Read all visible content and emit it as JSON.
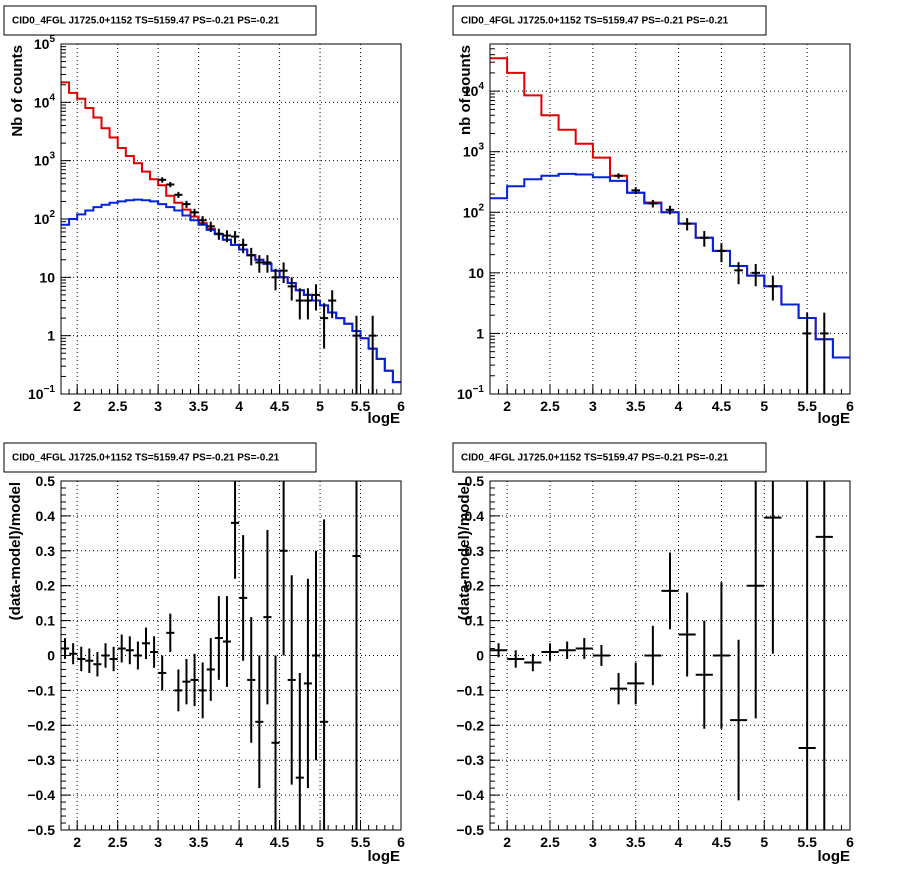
{
  "colors": {
    "data": "#000000",
    "total_model": "#e00000",
    "source_model": "#0022dd",
    "grid": "#000000"
  },
  "chart_data": [
    {
      "type": "histogram",
      "title": "CID0_4FGL J1725.0+1152 TS=5159.47 PS=-0.21 PS=-0.21",
      "xlabel": "logE",
      "ylabel": "Nb of counts",
      "xlim": [
        1.8,
        6.0
      ],
      "ylim": [
        0.1,
        100000
      ],
      "yscale": "log",
      "grid": true,
      "xticks": [
        "2",
        "2.5",
        "3",
        "3.5",
        "4",
        "4.5",
        "5",
        "5.5",
        "6"
      ],
      "yticks": [
        {
          "v": 0.1,
          "base": "10",
          "exp": "−1"
        },
        {
          "v": 1,
          "base": "1",
          "exp": ""
        },
        {
          "v": 10,
          "base": "10",
          "exp": ""
        },
        {
          "v": 100,
          "base": "10",
          "exp": "2"
        },
        {
          "v": 1000,
          "base": "10",
          "exp": "3"
        },
        {
          "v": 10000,
          "base": "10",
          "exp": "4"
        },
        {
          "v": 100000,
          "base": "10",
          "exp": "5"
        }
      ],
      "bin_edges": [
        1.8,
        1.9,
        2.0,
        2.1,
        2.2,
        2.3,
        2.4,
        2.5,
        2.6,
        2.7,
        2.8,
        2.9,
        3.0,
        3.1,
        3.2,
        3.3,
        3.4,
        3.5,
        3.6,
        3.7,
        3.8,
        3.9,
        4.0,
        4.1,
        4.2,
        4.3,
        4.4,
        4.5,
        4.6,
        4.7,
        4.8,
        4.9,
        5.0,
        5.1,
        5.2,
        5.3,
        5.4,
        5.5,
        5.6,
        5.7,
        5.8,
        5.9,
        6.0
      ],
      "series": [
        {
          "name": "",
          "role": "total_model",
          "style": "step",
          "values": [
            22000,
            14500,
            11500,
            8000,
            5500,
            3600,
            2500,
            1650,
            1200,
            900,
            650,
            480,
            380,
            250,
            190,
            145,
            110,
            85,
            68,
            55,
            44,
            36,
            30,
            24,
            20,
            17,
            13,
            10,
            8,
            6,
            5,
            4,
            3.3,
            2.5,
            2,
            1.6,
            1.2,
            0.9,
            0.6,
            0.4,
            0.25,
            0.16
          ]
        },
        {
          "name": "",
          "role": "source_model",
          "style": "step",
          "values": [
            80,
            100,
            120,
            140,
            160,
            175,
            190,
            200,
            210,
            215,
            210,
            200,
            180,
            160,
            140,
            115,
            95,
            80,
            65,
            55,
            44,
            36,
            30,
            24,
            20,
            17,
            13,
            10,
            8,
            6,
            5,
            4,
            3.3,
            2.5,
            2,
            1.6,
            1.2,
            0.9,
            0.6,
            0.4,
            0.25,
            0.16
          ]
        },
        {
          "name": "",
          "role": "data",
          "style": "errorbar",
          "points": [
            {
              "x": 3.05,
              "y": 470,
              "lo": 420,
              "hi": 520
            },
            {
              "x": 3.15,
              "y": 390,
              "lo": 350,
              "hi": 430
            },
            {
              "x": 3.25,
              "y": 260,
              "lo": 230,
              "hi": 292
            },
            {
              "x": 3.35,
              "y": 180,
              "lo": 155,
              "hi": 205
            },
            {
              "x": 3.45,
              "y": 130,
              "lo": 110,
              "hi": 150
            },
            {
              "x": 3.55,
              "y": 95,
              "lo": 78,
              "hi": 112
            },
            {
              "x": 3.65,
              "y": 75,
              "lo": 60,
              "hi": 90
            },
            {
              "x": 3.75,
              "y": 56,
              "lo": 44,
              "hi": 68
            },
            {
              "x": 3.85,
              "y": 52,
              "lo": 40,
              "hi": 64
            },
            {
              "x": 3.95,
              "y": 50,
              "lo": 38,
              "hi": 62
            },
            {
              "x": 4.05,
              "y": 36,
              "lo": 26,
              "hi": 46
            },
            {
              "x": 4.15,
              "y": 24,
              "lo": 16,
              "hi": 32
            },
            {
              "x": 4.25,
              "y": 18,
              "lo": 12,
              "hi": 24
            },
            {
              "x": 4.35,
              "y": 18,
              "lo": 12,
              "hi": 24
            },
            {
              "x": 4.45,
              "y": 10,
              "lo": 6,
              "hi": 14
            },
            {
              "x": 4.55,
              "y": 13,
              "lo": 8,
              "hi": 18
            },
            {
              "x": 4.65,
              "y": 7,
              "lo": 4,
              "hi": 10
            },
            {
              "x": 4.75,
              "y": 4,
              "lo": 1.9,
              "hi": 6.5
            },
            {
              "x": 4.85,
              "y": 4,
              "lo": 1.9,
              "hi": 6.5
            },
            {
              "x": 4.95,
              "y": 5,
              "lo": 2.7,
              "hi": 7.6
            },
            {
              "x": 5.05,
              "y": 2,
              "lo": 0.6,
              "hi": 3.6
            },
            {
              "x": 5.15,
              "y": 4,
              "lo": 2,
              "hi": 6
            },
            {
              "x": 5.45,
              "y": 1,
              "lo": 0.1,
              "hi": 2.2
            },
            {
              "x": 5.65,
              "y": 1,
              "lo": 0.1,
              "hi": 2.2
            }
          ]
        }
      ]
    },
    {
      "type": "histogram",
      "title": "CID0_4FGL J1725.0+1152 TS=5159.47 PS=-0.21 PS=-0.21",
      "xlabel": "logE",
      "ylabel": "nb of counts",
      "xlim": [
        1.8,
        6.0
      ],
      "ylim": [
        0.1,
        60000
      ],
      "yscale": "log",
      "grid": true,
      "xticks": [
        "2",
        "2.5",
        "3",
        "3.5",
        "4",
        "4.5",
        "5",
        "5.5",
        "6"
      ],
      "yticks": [
        {
          "v": 0.1,
          "base": "10",
          "exp": "−1"
        },
        {
          "v": 1,
          "base": "1",
          "exp": ""
        },
        {
          "v": 10,
          "base": "10",
          "exp": ""
        },
        {
          "v": 100,
          "base": "10",
          "exp": "2"
        },
        {
          "v": 1000,
          "base": "10",
          "exp": "3"
        },
        {
          "v": 10000,
          "base": "10",
          "exp": "4"
        }
      ],
      "bin_edges": [
        1.8,
        2.0,
        2.2,
        2.4,
        2.6,
        2.8,
        3.0,
        3.2,
        3.4,
        3.6,
        3.8,
        4.0,
        4.2,
        4.4,
        4.6,
        4.8,
        5.0,
        5.2,
        5.4,
        5.6,
        5.8,
        6.0
      ],
      "series": [
        {
          "name": "",
          "role": "total_model",
          "style": "step",
          "values": [
            35000,
            20000,
            8500,
            4000,
            2300,
            1350,
            800,
            400,
            210,
            145,
            100,
            65,
            38,
            23,
            13,
            9,
            6,
            3,
            1.8,
            0.8,
            0.4
          ]
        },
        {
          "name": "",
          "role": "source_model",
          "style": "step",
          "values": [
            170,
            270,
            350,
            400,
            430,
            420,
            380,
            330,
            210,
            140,
            100,
            65,
            38,
            23,
            13,
            9,
            6,
            3,
            1.8,
            0.8,
            0.4
          ]
        },
        {
          "name": "",
          "role": "data",
          "style": "errorbar",
          "points": [
            {
              "x": 3.3,
              "y": 400,
              "lo": 360,
              "hi": 440
            },
            {
              "x": 3.5,
              "y": 230,
              "lo": 200,
              "hi": 260
            },
            {
              "x": 3.7,
              "y": 140,
              "lo": 120,
              "hi": 160
            },
            {
              "x": 3.9,
              "y": 110,
              "lo": 92,
              "hi": 128
            },
            {
              "x": 4.1,
              "y": 65,
              "lo": 50,
              "hi": 80
            },
            {
              "x": 4.3,
              "y": 38,
              "lo": 27,
              "hi": 49
            },
            {
              "x": 4.5,
              "y": 23,
              "lo": 15,
              "hi": 31
            },
            {
              "x": 4.7,
              "y": 11,
              "lo": 6.5,
              "hi": 15
            },
            {
              "x": 4.9,
              "y": 10,
              "lo": 6,
              "hi": 14
            },
            {
              "x": 5.1,
              "y": 6,
              "lo": 3.5,
              "hi": 9
            },
            {
              "x": 5.5,
              "y": 1,
              "lo": 0.1,
              "hi": 2.2
            },
            {
              "x": 5.7,
              "y": 1,
              "lo": 0.1,
              "hi": 2.2
            }
          ]
        }
      ]
    },
    {
      "type": "scatter",
      "title": "CID0_4FGL J1725.0+1152 TS=5159.47 PS=-0.21 PS=-0.21",
      "xlabel": "logE",
      "ylabel": "(data-model)/model",
      "xlim": [
        1.8,
        6.0
      ],
      "ylim": [
        -0.5,
        0.5
      ],
      "grid": true,
      "xticks": [
        "2",
        "2.5",
        "3",
        "3.5",
        "4",
        "4.5",
        "5",
        "5.5",
        "6"
      ],
      "yticks": [
        "−0.5",
        "−0.4",
        "−0.3",
        "−0.2",
        "−0.1",
        "0",
        "0.1",
        "0.2",
        "0.3",
        "0.4",
        "0.5"
      ],
      "series": [
        {
          "name": "",
          "role": "data",
          "style": "errorbar",
          "xerr": 0.05,
          "points": [
            {
              "x": 1.85,
              "y": 0.02,
              "e": 0.03
            },
            {
              "x": 1.95,
              "y": 0.005,
              "e": 0.03
            },
            {
              "x": 2.05,
              "y": -0.01,
              "e": 0.035
            },
            {
              "x": 2.15,
              "y": -0.015,
              "e": 0.035
            },
            {
              "x": 2.25,
              "y": -0.025,
              "e": 0.035
            },
            {
              "x": 2.35,
              "y": 0.0,
              "e": 0.035
            },
            {
              "x": 2.45,
              "y": -0.01,
              "e": 0.035
            },
            {
              "x": 2.55,
              "y": 0.02,
              "e": 0.04
            },
            {
              "x": 2.65,
              "y": 0.015,
              "e": 0.04
            },
            {
              "x": 2.75,
              "y": 0.0,
              "e": 0.04
            },
            {
              "x": 2.85,
              "y": 0.035,
              "e": 0.045
            },
            {
              "x": 2.95,
              "y": 0.01,
              "e": 0.045
            },
            {
              "x": 3.05,
              "y": -0.05,
              "e": 0.05
            },
            {
              "x": 3.15,
              "y": 0.065,
              "e": 0.055
            },
            {
              "x": 3.25,
              "y": -0.1,
              "e": 0.06
            },
            {
              "x": 3.35,
              "y": -0.075,
              "e": 0.065
            },
            {
              "x": 3.45,
              "y": -0.07,
              "e": 0.075
            },
            {
              "x": 3.55,
              "y": -0.1,
              "e": 0.08
            },
            {
              "x": 3.65,
              "y": -0.04,
              "e": 0.09
            },
            {
              "x": 3.75,
              "y": 0.05,
              "e": 0.12
            },
            {
              "x": 3.85,
              "y": 0.04,
              "e": 0.13
            },
            {
              "x": 3.95,
              "y": 0.38,
              "e": 0.16
            },
            {
              "x": 4.05,
              "y": 0.165,
              "e": 0.18
            },
            {
              "x": 4.15,
              "y": -0.07,
              "e": 0.18
            },
            {
              "x": 4.25,
              "y": -0.19,
              "e": 0.19
            },
            {
              "x": 4.35,
              "y": 0.11,
              "e": 0.25
            },
            {
              "x": 4.45,
              "y": -0.25,
              "e": 0.25
            },
            {
              "x": 4.55,
              "y": 0.3,
              "e": 0.3
            },
            {
              "x": 4.65,
              "y": -0.07,
              "e": 0.3
            },
            {
              "x": 4.75,
              "y": -0.35,
              "e": 0.3
            },
            {
              "x": 4.85,
              "y": -0.08,
              "e": 0.3
            },
            {
              "x": 4.95,
              "y": 0.0,
              "e": 0.3
            },
            {
              "x": 5.05,
              "y": -0.19,
              "e": 0.58
            },
            {
              "x": 5.45,
              "y": 0.285,
              "e": 0.9
            }
          ]
        }
      ]
    },
    {
      "type": "scatter",
      "title": "CID0_4FGL J1725.0+1152 TS=5159.47 PS=-0.21 PS=-0.21",
      "xlabel": "logE",
      "ylabel": "(data-model)/model",
      "xlim": [
        1.8,
        6.0
      ],
      "ylim": [
        -0.5,
        0.5
      ],
      "grid": true,
      "xticks": [
        "2",
        "2.5",
        "3",
        "3.5",
        "4",
        "4.5",
        "5",
        "5.5",
        "6"
      ],
      "yticks": [
        "−0.5",
        "−0.4",
        "−0.3",
        "−0.2",
        "−0.1",
        "0",
        "0.1",
        "0.2",
        "0.3",
        "0.4",
        "0.5"
      ],
      "series": [
        {
          "name": "",
          "role": "data",
          "style": "errorbar",
          "xerr": 0.1,
          "points": [
            {
              "x": 1.9,
              "y": 0.015,
              "e": 0.02
            },
            {
              "x": 2.1,
              "y": -0.01,
              "e": 0.025
            },
            {
              "x": 2.3,
              "y": -0.02,
              "e": 0.025
            },
            {
              "x": 2.5,
              "y": 0.01,
              "e": 0.025
            },
            {
              "x": 2.7,
              "y": 0.015,
              "e": 0.025
            },
            {
              "x": 2.9,
              "y": 0.02,
              "e": 0.03
            },
            {
              "x": 3.1,
              "y": 0.0,
              "e": 0.03
            },
            {
              "x": 3.3,
              "y": -0.095,
              "e": 0.045
            },
            {
              "x": 3.5,
              "y": -0.08,
              "e": 0.06
            },
            {
              "x": 3.7,
              "y": 0.0,
              "e": 0.085
            },
            {
              "x": 3.9,
              "y": 0.185,
              "e": 0.11
            },
            {
              "x": 4.1,
              "y": 0.06,
              "e": 0.12
            },
            {
              "x": 4.3,
              "y": -0.055,
              "e": 0.155
            },
            {
              "x": 4.5,
              "y": 0.0,
              "e": 0.21
            },
            {
              "x": 4.7,
              "y": -0.185,
              "e": 0.23
            },
            {
              "x": 4.9,
              "y": 0.2,
              "e": 0.38
            },
            {
              "x": 5.1,
              "y": 0.395,
              "e": 0.39
            },
            {
              "x": 5.5,
              "y": -0.265,
              "e": 0.8
            },
            {
              "x": 5.7,
              "y": 0.34,
              "e": 0.9
            }
          ]
        }
      ]
    }
  ]
}
